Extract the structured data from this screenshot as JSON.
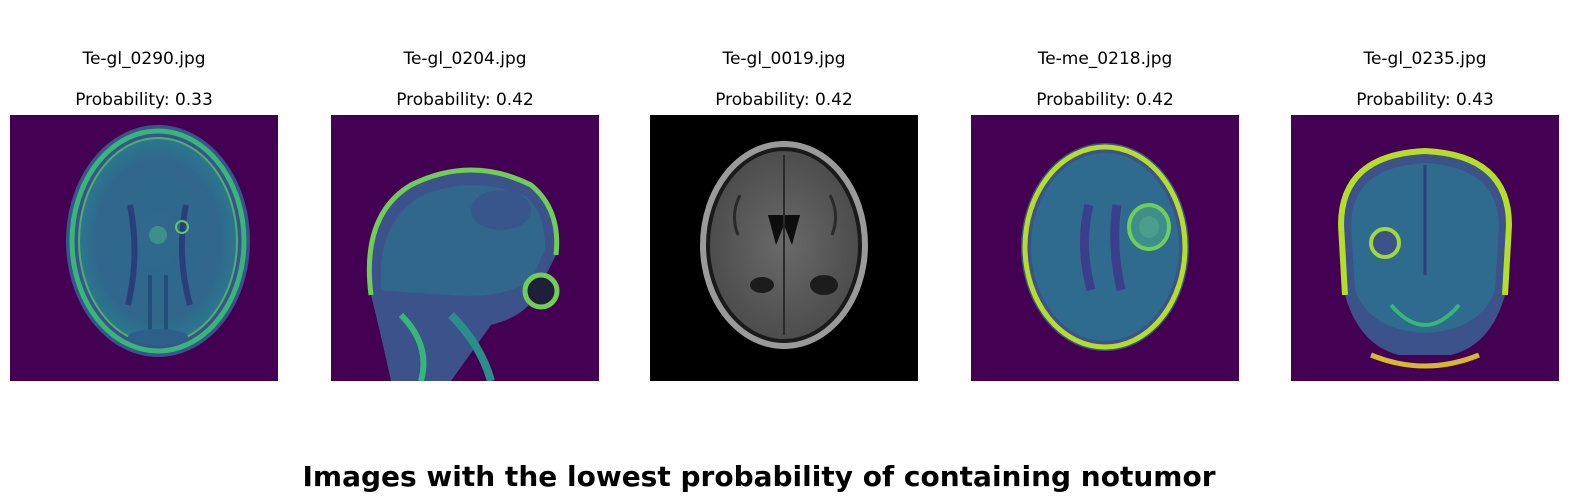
{
  "figure": {
    "title": "Images with the lowest probability of containing notumor"
  },
  "panels": [
    {
      "filename": "Te-gl_0290.jpg",
      "probability_label": "Probability: 0.33",
      "probability": 0.33,
      "colormap": "viridis",
      "view": "axial"
    },
    {
      "filename": "Te-gl_0204.jpg",
      "probability_label": "Probability: 0.42",
      "probability": 0.42,
      "colormap": "viridis",
      "view": "sagittal"
    },
    {
      "filename": "Te-gl_0019.jpg",
      "probability_label": "Probability: 0.42",
      "probability": 0.42,
      "colormap": "gray",
      "view": "axial"
    },
    {
      "filename": "Te-me_0218.jpg",
      "probability_label": "Probability: 0.42",
      "probability": 0.42,
      "colormap": "viridis",
      "view": "axial"
    },
    {
      "filename": "Te-gl_0235.jpg",
      "probability_label": "Probability: 0.43",
      "probability": 0.43,
      "colormap": "viridis",
      "view": "coronal"
    }
  ],
  "colors": {
    "viridis_background": "#440154",
    "viridis_tissue": "#2a6c8e",
    "viridis_bright": "#bfe33a",
    "gray_background": "#000000"
  }
}
